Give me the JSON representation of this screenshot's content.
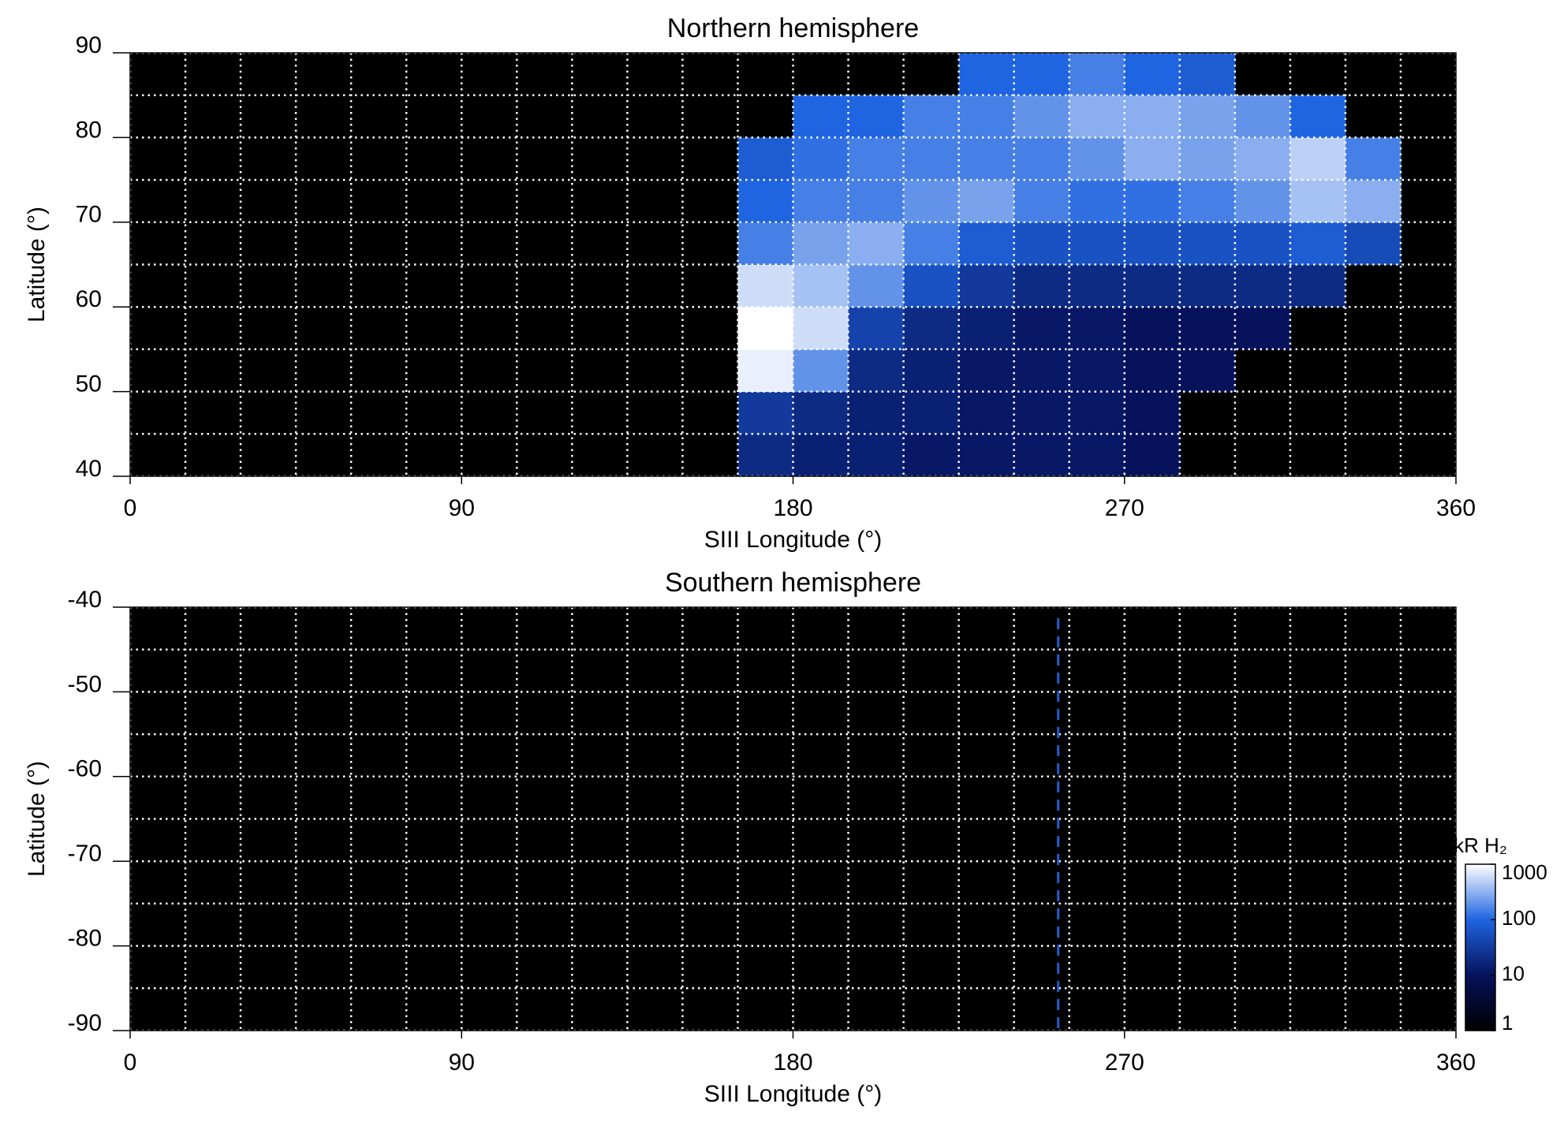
{
  "chart_data": [
    {
      "type": "heatmap",
      "title": "Northern hemisphere",
      "xlabel": "SIII Longitude (°)",
      "ylabel": "Latitude (°)",
      "xlim": [
        0,
        360
      ],
      "xticks": [
        0,
        90,
        180,
        270,
        360
      ],
      "ylim": [
        40,
        90
      ],
      "yticks": [
        40,
        50,
        60,
        70,
        80,
        90
      ],
      "grid": true,
      "xbins": [
        0,
        15,
        30,
        45,
        60,
        75,
        90,
        105,
        120,
        135,
        150,
        165,
        180,
        195,
        210,
        225,
        240,
        255,
        270,
        285,
        300,
        315,
        330,
        345,
        360
      ],
      "ybins": [
        40,
        45,
        50,
        55,
        60,
        65,
        70,
        75,
        80,
        85,
        90
      ],
      "z": [
        [
          null,
          null,
          null,
          null,
          null,
          null,
          null,
          null,
          null,
          null,
          null,
          20,
          15,
          15,
          12,
          12,
          12,
          12,
          10,
          null,
          null,
          null,
          null,
          null
        ],
        [
          null,
          null,
          null,
          null,
          null,
          null,
          null,
          null,
          null,
          null,
          null,
          30,
          20,
          15,
          15,
          12,
          12,
          12,
          10,
          null,
          null,
          null,
          null,
          null
        ],
        [
          null,
          null,
          null,
          null,
          null,
          null,
          null,
          null,
          null,
          null,
          null,
          800,
          200,
          20,
          15,
          12,
          12,
          12,
          10,
          10,
          null,
          null,
          null,
          null
        ],
        [
          null,
          null,
          null,
          null,
          null,
          null,
          null,
          null,
          null,
          null,
          null,
          1000,
          600,
          40,
          20,
          15,
          12,
          12,
          10,
          10,
          10,
          null,
          null,
          null
        ],
        [
          null,
          null,
          null,
          null,
          null,
          null,
          null,
          null,
          null,
          null,
          null,
          600,
          400,
          200,
          60,
          30,
          20,
          20,
          20,
          20,
          20,
          20,
          null,
          null
        ],
        [
          null,
          null,
          null,
          null,
          null,
          null,
          null,
          null,
          null,
          null,
          null,
          150,
          250,
          300,
          150,
          80,
          60,
          60,
          60,
          60,
          60,
          80,
          50,
          null
        ],
        [
          null,
          null,
          null,
          null,
          null,
          null,
          null,
          null,
          null,
          null,
          null,
          100,
          150,
          150,
          200,
          250,
          150,
          120,
          120,
          150,
          200,
          400,
          300,
          null
        ],
        [
          null,
          null,
          null,
          null,
          null,
          null,
          null,
          null,
          null,
          null,
          null,
          80,
          120,
          150,
          150,
          150,
          150,
          200,
          300,
          250,
          300,
          500,
          150,
          null
        ],
        [
          null,
          null,
          null,
          null,
          null,
          null,
          null,
          null,
          null,
          null,
          null,
          null,
          100,
          100,
          150,
          150,
          200,
          300,
          300,
          250,
          200,
          100,
          null,
          null
        ],
        [
          null,
          null,
          null,
          null,
          null,
          null,
          null,
          null,
          null,
          null,
          null,
          null,
          null,
          null,
          null,
          100,
          100,
          150,
          100,
          80,
          null,
          null,
          null,
          null
        ]
      ]
    },
    {
      "type": "heatmap",
      "title": "Southern hemisphere",
      "xlabel": "SIII Longitude (°)",
      "ylabel": "Latitude (°)",
      "xlim": [
        0,
        360
      ],
      "xticks": [
        0,
        90,
        180,
        270,
        360
      ],
      "ylim": [
        -90,
        -40
      ],
      "yticks": [
        -90,
        -80,
        -70,
        -60,
        -50,
        -40
      ],
      "grid": true,
      "xbins": [
        0,
        15,
        30,
        45,
        60,
        75,
        90,
        105,
        120,
        135,
        150,
        165,
        180,
        195,
        210,
        225,
        240,
        255,
        270,
        285,
        300,
        315,
        330,
        345,
        360
      ],
      "ybins": [
        -90,
        -85,
        -80,
        -75,
        -70,
        -65,
        -60,
        -55,
        -50,
        -45,
        -40
      ],
      "vlines": [
        {
          "x": 252,
          "color": "#1f5fd0"
        }
      ],
      "colorbar": {
        "label": "kR H₂",
        "zlim": [
          1,
          1000
        ],
        "zticks": [
          1,
          10,
          100,
          1000
        ],
        "log": true,
        "colors": [
          "#000000",
          "#06125c",
          "#1f64e0",
          "#ffffff"
        ]
      }
    }
  ]
}
